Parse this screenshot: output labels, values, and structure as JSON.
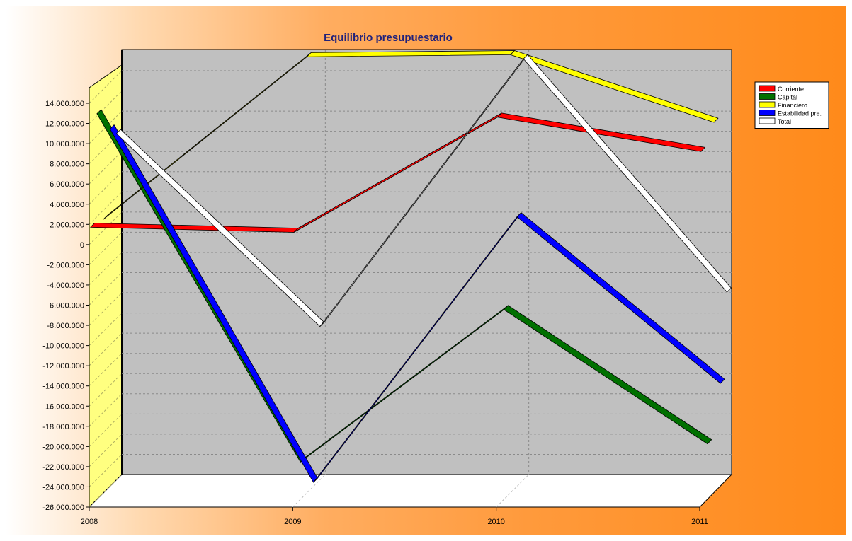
{
  "chart_data": {
    "type": "line",
    "title": "Equilibrio presupuestario",
    "xlabel": "",
    "ylabel": "",
    "categories": [
      "2008",
      "2009",
      "2010",
      "2011"
    ],
    "ylim": [
      -26000000,
      14000000
    ],
    "ytick_step": 2000000,
    "y_tick_labels": [
      "-26.000.000",
      "-24.000.000",
      "-22.000.000",
      "-20.000.000",
      "-18.000.000",
      "-16.000.000",
      "-14.000.000",
      "-12.000.000",
      "-10.000.000",
      "-8.000.000",
      "-6.000.000",
      "-4.000.000",
      "-2.000.000",
      "0",
      "2.000.000",
      "4.000.000",
      "6.000.000",
      "8.000.000",
      "10.000.000",
      "12.000.000",
      "14.000.000"
    ],
    "grid": true,
    "legend_position": "right",
    "series": [
      {
        "name": "Corriente",
        "color": "#ff0000",
        "values": [
          1600000,
          1100000,
          12500000,
          9100000
        ]
      },
      {
        "name": "Capital",
        "color": "#007000",
        "values": [
          12200000,
          -22300000,
          -7200000,
          -20500000
        ]
      },
      {
        "name": "Financiero",
        "color": "#ffff00",
        "values": [
          1100000,
          17200000,
          17400000,
          10700000
        ]
      },
      {
        "name": "Estabilidad pre.",
        "color": "#0000ff",
        "values": [
          9400000,
          -25600000,
          700000,
          -15800000
        ]
      },
      {
        "name": "Total",
        "color": "#ffffff",
        "values": [
          8300000,
          -10800000,
          15700000,
          -7400000
        ]
      }
    ]
  }
}
